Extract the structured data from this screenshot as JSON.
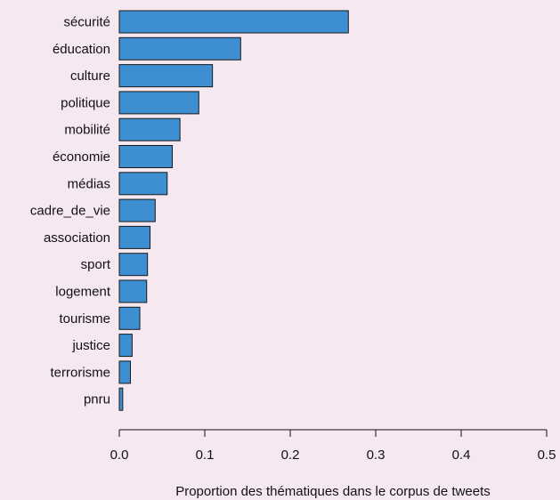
{
  "chart_data": {
    "type": "bar",
    "orientation": "horizontal",
    "categories": [
      "sécurité",
      "éducation",
      "culture",
      "politique",
      "mobilité",
      "économie",
      "médias",
      "cadre_de_vie",
      "association",
      "sport",
      "logement",
      "tourisme",
      "justice",
      "terrorisme",
      "pnru"
    ],
    "values": [
      0.268,
      0.142,
      0.109,
      0.093,
      0.071,
      0.062,
      0.056,
      0.042,
      0.036,
      0.033,
      0.032,
      0.024,
      0.015,
      0.013,
      0.004
    ],
    "xlabel": "Proportion des thématiques dans le corpus de tweets",
    "ylabel": "",
    "xlim": [
      0,
      0.5
    ],
    "xticks": [
      "0.0",
      "0.1",
      "0.2",
      "0.3",
      "0.4",
      "0.5"
    ],
    "grid": false,
    "legend": "none",
    "colors": {
      "bar_fill": "#3d8fd2",
      "bar_stroke": "#1a1a1a",
      "background": "#f6e8f1",
      "axis": "#111111",
      "text": "#111111"
    }
  }
}
